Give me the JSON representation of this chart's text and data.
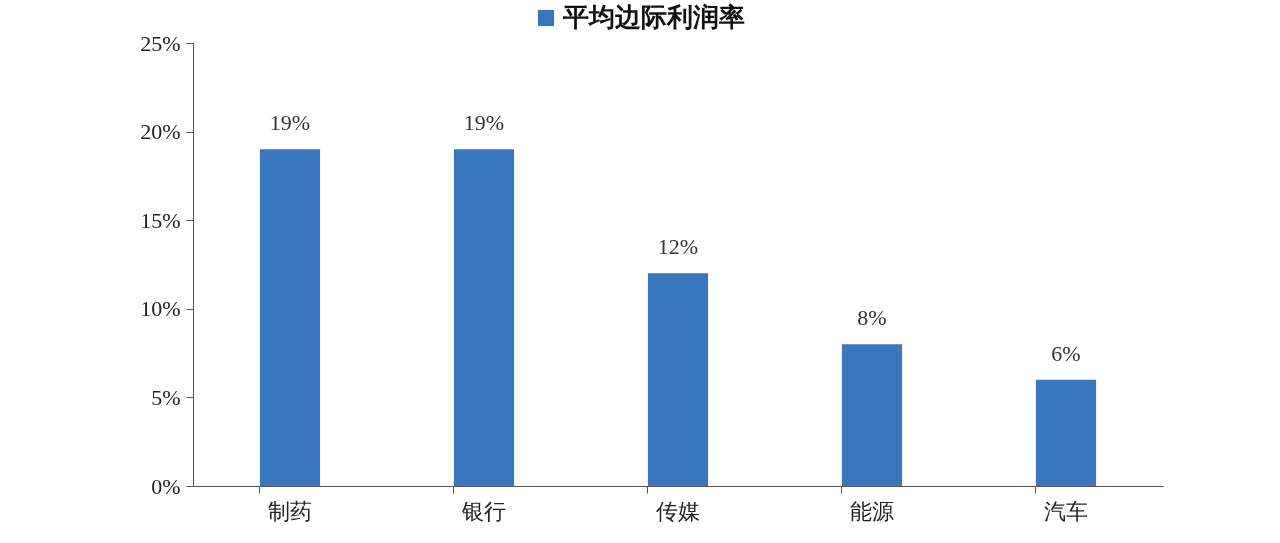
{
  "chart_data": {
    "type": "bar",
    "categories": [
      "制药",
      "银行",
      "传媒",
      "能源",
      "汽车"
    ],
    "series": [
      {
        "name": "平均边际利润率",
        "color": "#3a76c0",
        "values": [
          19,
          19,
          12,
          8,
          6
        ]
      }
    ],
    "value_labels": [
      "19%",
      "19%",
      "12%",
      "8%",
      "6%"
    ],
    "ylim": [
      0,
      25
    ],
    "yticks": [
      {
        "value": 0,
        "label": "0%"
      },
      {
        "value": 5,
        "label": "5%"
      },
      {
        "value": 10,
        "label": "10%"
      },
      {
        "value": 15,
        "label": "15%"
      },
      {
        "value": 20,
        "label": "20%"
      },
      {
        "value": 25,
        "label": "25%"
      }
    ],
    "grid": false,
    "legend": "top"
  }
}
